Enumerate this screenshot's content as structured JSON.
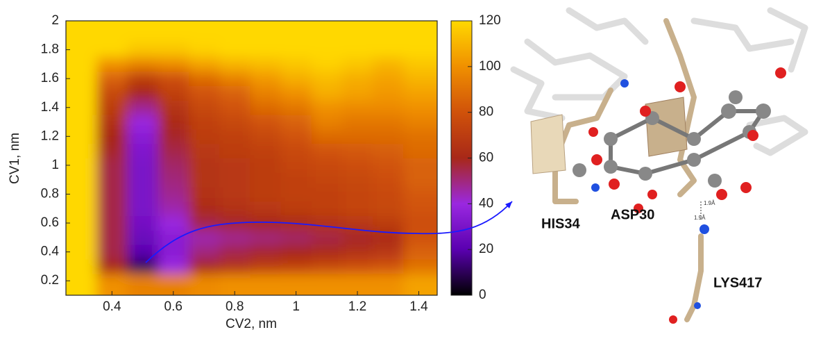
{
  "chart_data": {
    "type": "heatmap",
    "xlabel": "CV2, nm",
    "ylabel": "CV1, nm",
    "xlim": [
      0.25,
      1.46
    ],
    "ylim": [
      0.1,
      2
    ],
    "xticks": [
      0.4,
      0.6,
      0.8,
      1,
      1.2,
      1.4
    ],
    "yticks": [
      0.2,
      0.4,
      0.6,
      0.8,
      1,
      1.2,
      1.4,
      1.6,
      1.8,
      2
    ],
    "zlim": [
      0,
      120
    ],
    "zticks": [
      0,
      20,
      40,
      60,
      80,
      100,
      120
    ],
    "colorscale": [
      "#000000",
      "#5a00b0",
      "#9a28e0",
      "#a82818",
      "#d0520a",
      "#f09000",
      "#ffd800"
    ],
    "x": [
      0.3,
      0.4,
      0.5,
      0.6,
      0.7,
      0.8,
      0.9,
      1.0,
      1.1,
      1.2,
      1.3,
      1.4
    ],
    "y": [
      0.2,
      0.3,
      0.4,
      0.5,
      0.6,
      0.7,
      0.8,
      0.9,
      1.0,
      1.1,
      1.2,
      1.3,
      1.4,
      1.5,
      1.6,
      1.7,
      1.8,
      1.9
    ],
    "z": [
      [
        120,
        100,
        95,
        95,
        98,
        100,
        100,
        100,
        100,
        100,
        100,
        105
      ],
      [
        120,
        60,
        10,
        40,
        60,
        65,
        70,
        72,
        75,
        78,
        80,
        90
      ],
      [
        120,
        55,
        20,
        35,
        50,
        55,
        58,
        60,
        62,
        65,
        68,
        85
      ],
      [
        120,
        55,
        25,
        35,
        45,
        48,
        50,
        52,
        55,
        58,
        62,
        80
      ],
      [
        120,
        55,
        28,
        40,
        55,
        58,
        60,
        62,
        65,
        68,
        70,
        78
      ],
      [
        120,
        55,
        30,
        45,
        62,
        65,
        68,
        70,
        72,
        74,
        75,
        80
      ],
      [
        120,
        55,
        30,
        48,
        65,
        68,
        70,
        72,
        72,
        74,
        76,
        82
      ],
      [
        120,
        55,
        30,
        50,
        66,
        68,
        70,
        72,
        74,
        75,
        78,
        85
      ],
      [
        120,
        55,
        30,
        52,
        66,
        68,
        70,
        74,
        76,
        78,
        80,
        85
      ],
      [
        120,
        58,
        32,
        55,
        68,
        70,
        72,
        76,
        80,
        82,
        84,
        88
      ],
      [
        120,
        60,
        35,
        58,
        70,
        72,
        75,
        80,
        88,
        88,
        88,
        90
      ],
      [
        120,
        65,
        40,
        62,
        72,
        75,
        80,
        85,
        95,
        92,
        92,
        95
      ],
      [
        120,
        70,
        48,
        66,
        75,
        80,
        88,
        92,
        100,
        98,
        98,
        100
      ],
      [
        120,
        75,
        60,
        72,
        80,
        85,
        95,
        100,
        108,
        105,
        102,
        105
      ],
      [
        120,
        85,
        70,
        78,
        88,
        95,
        102,
        108,
        112,
        108,
        105,
        110
      ],
      [
        120,
        100,
        95,
        98,
        105,
        110,
        112,
        115,
        118,
        115,
        110,
        115
      ],
      [
        120,
        120,
        115,
        115,
        118,
        120,
        120,
        120,
        120,
        120,
        120,
        120
      ],
      [
        120,
        120,
        120,
        120,
        120,
        120,
        120,
        120,
        120,
        120,
        120,
        120
      ]
    ]
  },
  "structure": {
    "labels": [
      "HIS34",
      "ASP30",
      "LYS417"
    ],
    "distances": [
      "1.9Å",
      "1.9Å"
    ]
  }
}
